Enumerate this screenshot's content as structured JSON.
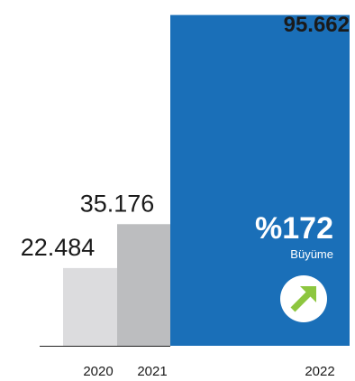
{
  "chart_data": {
    "type": "bar",
    "categories": [
      "2020",
      "2021",
      "2022"
    ],
    "values": [
      22484,
      35176,
      95662
    ],
    "value_labels": [
      "22.484",
      "35.176",
      "95.662"
    ],
    "ylim": [
      0,
      100000
    ],
    "grid": false,
    "legend": "none",
    "colors": [
      "#dcdcde",
      "#bcbdbf",
      "#1a6fb8"
    ]
  },
  "callout": {
    "growth_value": "%172",
    "growth_label": "Büyüme",
    "growth_color": "#ffffff",
    "arrow_color": "#8dc63f",
    "arrow_icon": "arrow-up-right-icon"
  },
  "colors": {
    "baseline": "#222222",
    "value_text": "#1a1a1a",
    "tick_text": "#1a1a1a"
  }
}
